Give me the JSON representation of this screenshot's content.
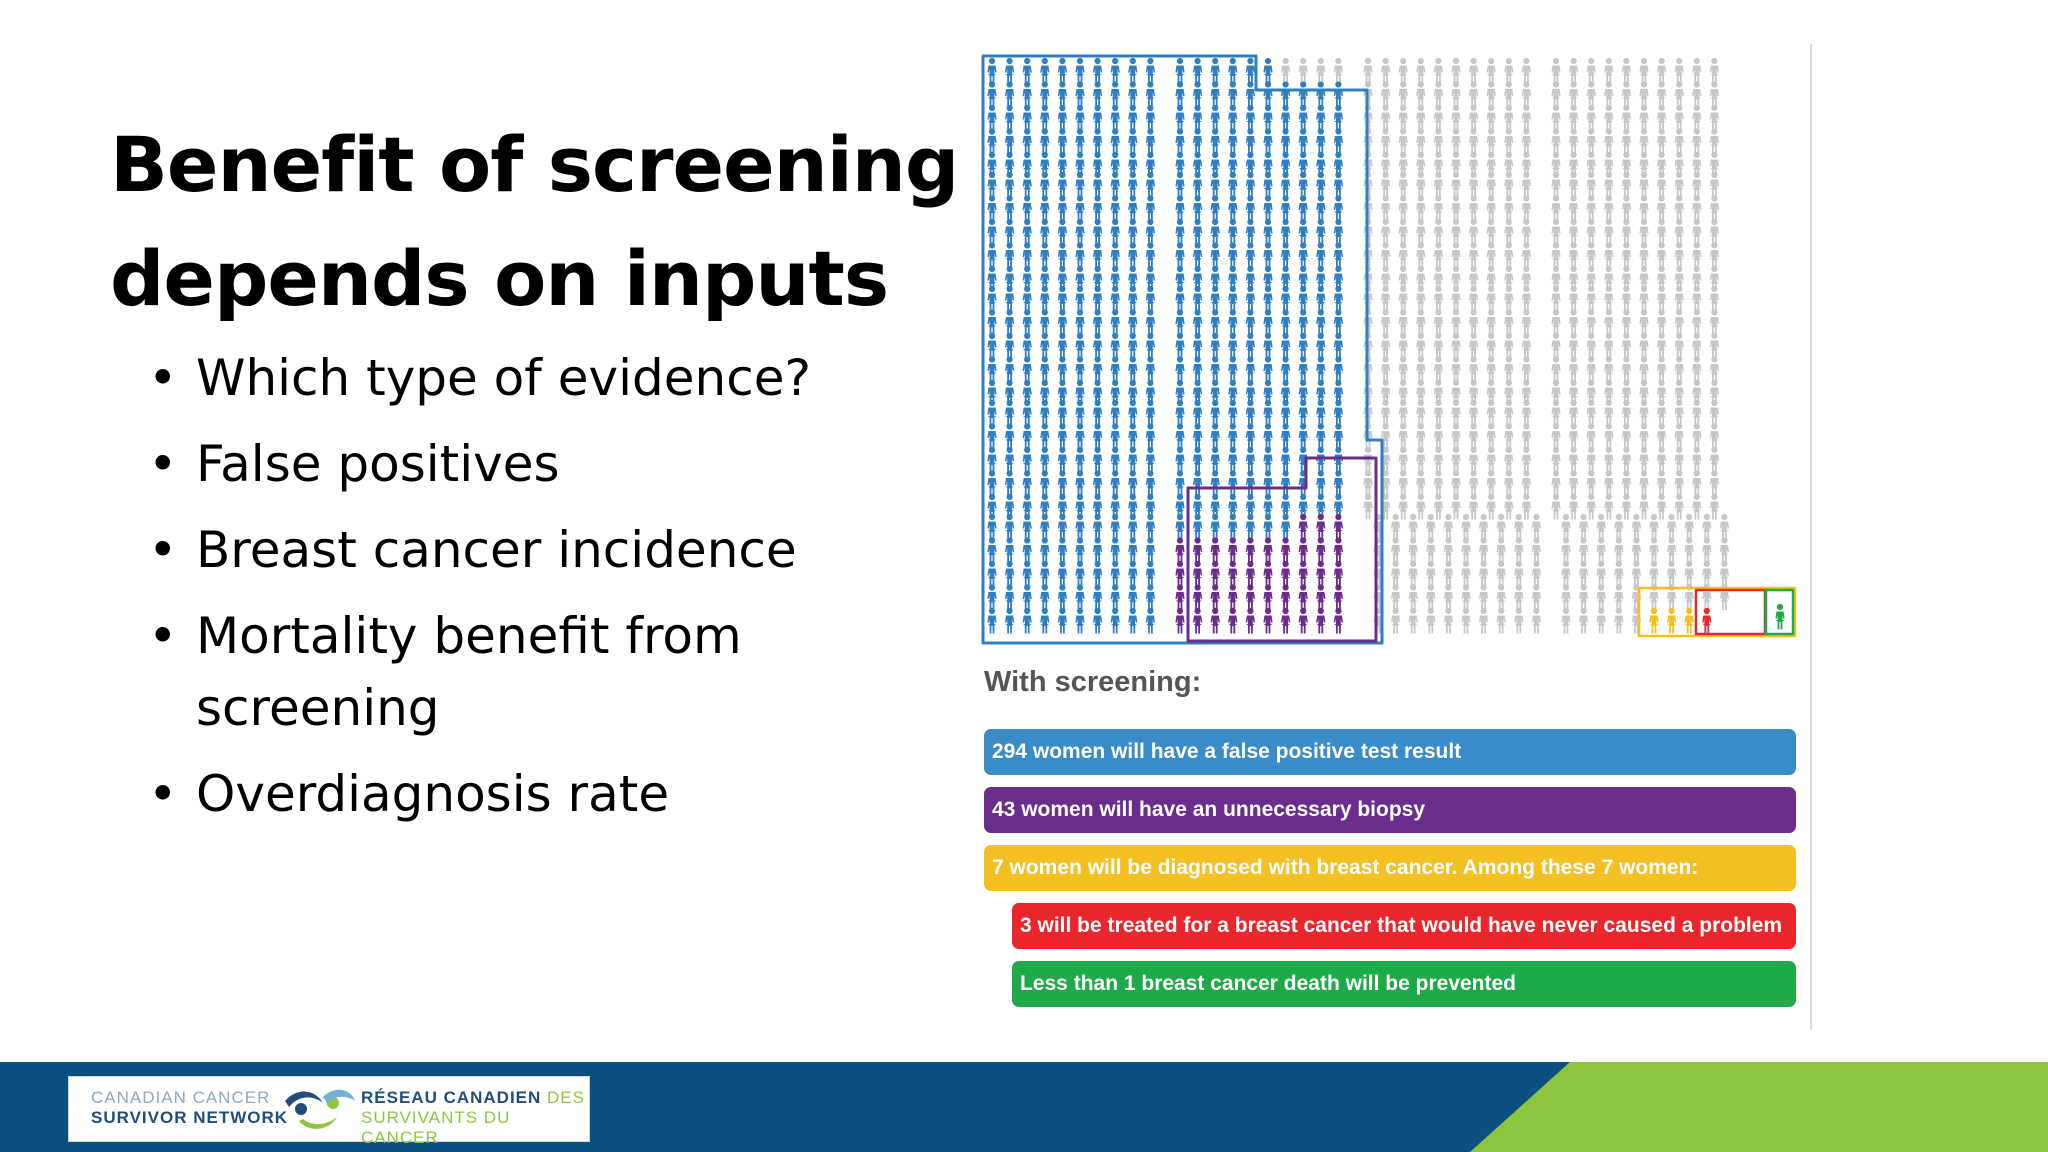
{
  "slide": {
    "title_line1": "Benefit of screening",
    "title_line2": "depends on inputs",
    "bullets": [
      "Which type of evidence?",
      "False positives",
      "Breast cancer incidence",
      "Mortality benefit from",
      "screening",
      "Overdiagnosis rate"
    ]
  },
  "infographic": {
    "with_screening_label": "With screening:",
    "bars": [
      {
        "text": "294 women will have a false positive test result",
        "color": "#3a8cc8"
      },
      {
        "text": "43 women will have an unnecessary biopsy",
        "color": "#6a2d8c"
      },
      {
        "text": "7 women will be diagnosed with breast cancer. Among these 7 women:",
        "color": "#f4c021"
      },
      {
        "text": "3 will be treated for a breast cancer that would have never caused a problem",
        "color": "#e8262c"
      },
      {
        "text": "Less than 1 breast cancer death will be prevented",
        "color": "#1faa4a"
      }
    ],
    "colors": {
      "blue": "#2f7fc2",
      "purple": "#6a2d8c",
      "grey": "#c5c7cb",
      "yellow": "#f4c021",
      "red": "#e8262c",
      "green": "#1faa4a"
    }
  },
  "footer": {
    "logo_en_line1": "CANADIAN CANCER",
    "logo_en_line2": "SURVIVOR NETWORK",
    "logo_fr_line1_bold": "RÉSEAU CANADIEN",
    "logo_fr_line1_light": "DES",
    "logo_fr_line2": "SURVIVANTS DU CANCER",
    "colors": {
      "blue": "#0a5080",
      "green": "#8cc63f"
    }
  }
}
